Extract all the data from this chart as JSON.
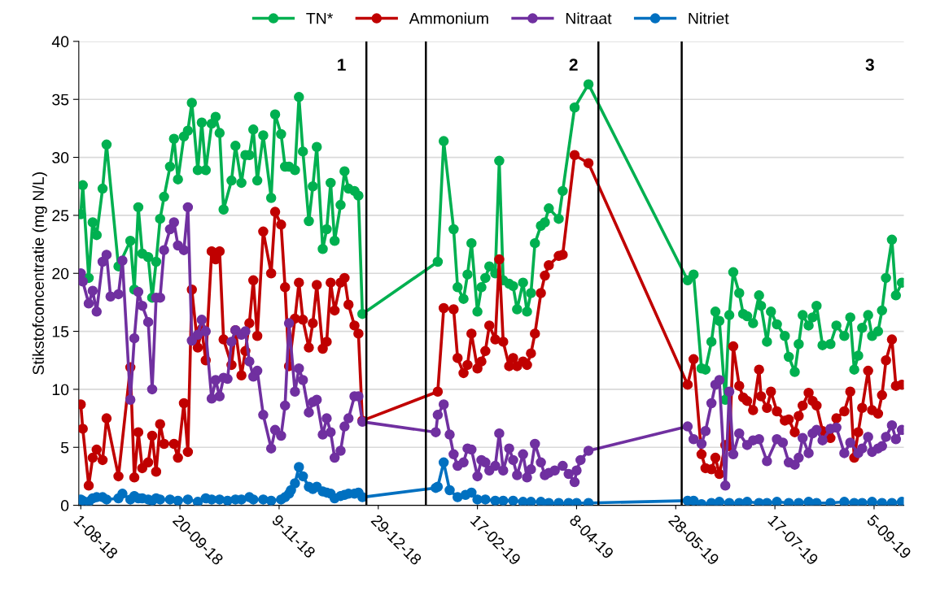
{
  "chart_data": {
    "type": "line",
    "ylabel": "Stikstofconcentratie (mg N/L)",
    "xlim": [
      "2018-07-31",
      "2019-09-20"
    ],
    "ylim": [
      0,
      40
    ],
    "yticks": [
      0,
      5,
      10,
      15,
      20,
      25,
      30,
      35,
      40
    ],
    "xticks": [
      {
        "value": "2018-08-01",
        "label": "1-08-18"
      },
      {
        "value": "2018-09-20",
        "label": "20-09-18"
      },
      {
        "value": "2018-11-09",
        "label": "9-11-18"
      },
      {
        "value": "2018-12-29",
        "label": "29-12-18"
      },
      {
        "value": "2019-02-17",
        "label": "17-02-19"
      },
      {
        "value": "2019-04-08",
        "label": "8-04-19"
      },
      {
        "value": "2019-05-28",
        "label": "28-05-19"
      },
      {
        "value": "2019-07-17",
        "label": "17-07-19"
      },
      {
        "value": "2019-09-05",
        "label": "5-09-19"
      }
    ],
    "grid": "y",
    "legend": "top",
    "marker": "circle",
    "line_style": "solid",
    "ref_lines": [
      {
        "axis": "x",
        "value": "2018-12-23",
        "color": "#000000"
      },
      {
        "axis": "x",
        "value": "2019-01-22",
        "color": "#000000"
      },
      {
        "axis": "x",
        "value": "2019-04-19",
        "color": "#000000"
      },
      {
        "axis": "x",
        "value": "2019-05-31",
        "color": "#000000"
      }
    ],
    "annotations": [
      "1",
      "2",
      "3"
    ],
    "series": [
      {
        "name": "TN*",
        "color": "#00b050",
        "x": [
          "2018-08-01",
          "2018-08-02",
          "2018-08-05",
          "2018-08-07",
          "2018-08-09",
          "2018-08-12",
          "2018-08-14",
          "2018-08-20",
          "2018-08-26",
          "2018-08-28",
          "2018-08-30",
          "2018-09-01",
          "2018-09-04",
          "2018-09-06",
          "2018-09-08",
          "2018-09-10",
          "2018-09-12",
          "2018-09-15",
          "2018-09-17",
          "2018-09-19",
          "2018-09-22",
          "2018-09-24",
          "2018-09-26",
          "2018-09-29",
          "2018-10-01",
          "2018-10-03",
          "2018-10-06",
          "2018-10-08",
          "2018-10-10",
          "2018-10-12",
          "2018-10-16",
          "2018-10-18",
          "2018-10-21",
          "2018-10-23",
          "2018-10-25",
          "2018-10-27",
          "2018-10-29",
          "2018-11-01",
          "2018-11-05",
          "2018-11-07",
          "2018-11-10",
          "2018-11-12",
          "2018-11-14",
          "2018-11-17",
          "2018-11-19",
          "2018-11-21",
          "2018-11-24",
          "2018-11-26",
          "2018-11-28",
          "2018-12-01",
          "2018-12-03",
          "2018-12-05",
          "2018-12-07",
          "2018-12-10",
          "2018-12-12",
          "2018-12-14",
          "2018-12-17",
          "2018-12-19",
          "2018-12-21",
          "2019-01-28",
          "2019-01-31",
          "2019-02-05",
          "2019-02-07",
          "2019-02-10",
          "2019-02-12",
          "2019-02-14",
          "2019-02-17",
          "2019-02-19",
          "2019-02-21",
          "2019-02-23",
          "2019-02-26",
          "2019-02-28",
          "2019-03-02",
          "2019-03-05",
          "2019-03-07",
          "2019-03-09",
          "2019-03-12",
          "2019-03-14",
          "2019-03-16",
          "2019-03-18",
          "2019-03-21",
          "2019-03-23",
          "2019-03-25",
          "2019-03-30",
          "2019-04-01",
          "2019-04-07",
          "2019-04-14",
          "2019-06-03",
          "2019-06-06",
          "2019-06-10",
          "2019-06-12",
          "2019-06-15",
          "2019-06-17",
          "2019-06-19",
          "2019-06-22",
          "2019-06-24",
          "2019-06-26",
          "2019-06-29",
          "2019-07-01",
          "2019-07-03",
          "2019-07-06",
          "2019-07-09",
          "2019-07-10",
          "2019-07-13",
          "2019-07-15",
          "2019-07-18",
          "2019-07-22",
          "2019-07-24",
          "2019-07-27",
          "2019-07-29",
          "2019-07-31",
          "2019-08-03",
          "2019-08-05",
          "2019-08-07",
          "2019-08-10",
          "2019-08-14",
          "2019-08-17",
          "2019-08-21",
          "2019-08-24",
          "2019-08-26",
          "2019-08-28",
          "2019-08-30",
          "2019-09-02",
          "2019-09-04",
          "2019-09-07",
          "2019-09-09",
          "2019-09-11",
          "2019-09-14",
          "2019-09-16",
          "2019-09-19"
        ],
        "values": [
          25.1,
          27.6,
          19.6,
          24.4,
          23.3,
          27.3,
          31.1,
          20.6,
          22.8,
          18.6,
          25.7,
          21.7,
          21.4,
          17.9,
          21.0,
          24.7,
          26.6,
          29.2,
          31.6,
          28.1,
          31.8,
          32.3,
          34.7,
          28.9,
          33.0,
          28.9,
          32.9,
          33.5,
          32.1,
          25.5,
          28.0,
          31.0,
          27.8,
          30.2,
          30.2,
          32.4,
          28.0,
          31.9,
          26.5,
          33.7,
          32.0,
          29.2,
          29.2,
          28.9,
          35.2,
          30.5,
          24.5,
          27.5,
          30.9,
          22.1,
          23.8,
          27.8,
          22.8,
          25.9,
          28.8,
          27.3,
          27.1,
          26.7,
          16.5,
          21.0,
          31.4,
          23.8,
          18.8,
          17.8,
          19.9,
          22.6,
          16.7,
          18.8,
          19.6,
          20.6,
          20.0,
          29.7,
          19.4,
          19.1,
          18.9,
          16.9,
          19.2,
          16.7,
          18.3,
          22.6,
          24.1,
          24.4,
          25.6,
          24.7,
          27.1,
          34.3,
          36.3,
          19.4,
          19.9,
          11.8,
          11.7,
          14.1,
          16.7,
          15.9,
          9.1,
          16.4,
          20.1,
          18.3,
          16.5,
          16.3,
          15.7,
          18.1,
          17.2,
          14.1,
          16.7,
          15.6,
          14.6,
          12.8,
          11.5,
          13.9,
          16.4,
          15.5,
          16.2,
          17.2,
          13.8,
          13.9,
          15.5,
          14.6,
          16.2,
          11.7,
          12.9,
          15.3,
          16.4,
          14.6,
          15.0,
          16.8,
          19.6,
          22.9,
          18.1,
          19.2
        ]
      },
      {
        "name": "Ammonium",
        "color": "#c00000",
        "x": [
          "2018-08-01",
          "2018-08-02",
          "2018-08-05",
          "2018-08-07",
          "2018-08-09",
          "2018-08-12",
          "2018-08-14",
          "2018-08-20",
          "2018-08-26",
          "2018-08-28",
          "2018-08-30",
          "2018-09-01",
          "2018-09-04",
          "2018-09-06",
          "2018-09-08",
          "2018-09-10",
          "2018-09-12",
          "2018-09-17",
          "2018-09-19",
          "2018-09-22",
          "2018-09-24",
          "2018-09-26",
          "2018-09-29",
          "2018-10-01",
          "2018-10-03",
          "2018-10-06",
          "2018-10-08",
          "2018-10-10",
          "2018-10-12",
          "2018-10-16",
          "2018-10-18",
          "2018-10-21",
          "2018-10-23",
          "2018-10-25",
          "2018-10-27",
          "2018-10-29",
          "2018-11-01",
          "2018-11-05",
          "2018-11-07",
          "2018-11-10",
          "2018-11-12",
          "2018-11-14",
          "2018-11-17",
          "2018-11-19",
          "2018-11-21",
          "2018-11-24",
          "2018-11-26",
          "2018-11-28",
          "2018-12-01",
          "2018-12-03",
          "2018-12-05",
          "2018-12-07",
          "2018-12-10",
          "2018-12-12",
          "2018-12-14",
          "2018-12-17",
          "2018-12-19",
          "2018-12-21",
          "2019-01-28",
          "2019-01-31",
          "2019-02-05",
          "2019-02-07",
          "2019-02-10",
          "2019-02-12",
          "2019-02-14",
          "2019-02-17",
          "2019-02-19",
          "2019-02-21",
          "2019-02-23",
          "2019-02-26",
          "2019-02-28",
          "2019-03-02",
          "2019-03-05",
          "2019-03-07",
          "2019-03-09",
          "2019-03-12",
          "2019-03-14",
          "2019-03-16",
          "2019-03-18",
          "2019-03-21",
          "2019-03-23",
          "2019-03-25",
          "2019-03-30",
          "2019-04-01",
          "2019-04-07",
          "2019-04-14",
          "2019-06-03",
          "2019-06-06",
          "2019-06-10",
          "2019-06-12",
          "2019-06-15",
          "2019-06-17",
          "2019-06-19",
          "2019-06-22",
          "2019-06-24",
          "2019-06-26",
          "2019-06-29",
          "2019-07-01",
          "2019-07-03",
          "2019-07-06",
          "2019-07-09",
          "2019-07-10",
          "2019-07-13",
          "2019-07-15",
          "2019-07-18",
          "2019-07-22",
          "2019-07-24",
          "2019-07-27",
          "2019-07-29",
          "2019-07-31",
          "2019-08-03",
          "2019-08-05",
          "2019-08-07",
          "2019-08-10",
          "2019-08-14",
          "2019-08-17",
          "2019-08-21",
          "2019-08-24",
          "2019-08-26",
          "2019-08-28",
          "2019-08-30",
          "2019-09-02",
          "2019-09-04",
          "2019-09-07",
          "2019-09-09",
          "2019-09-11",
          "2019-09-14",
          "2019-09-16",
          "2019-09-19"
        ],
        "values": [
          8.7,
          6.6,
          1.7,
          4.1,
          4.8,
          3.9,
          7.5,
          2.5,
          11.9,
          2.4,
          6.3,
          3.2,
          3.7,
          6.0,
          2.9,
          7.0,
          5.3,
          5.3,
          4.1,
          8.8,
          4.6,
          18.6,
          13.6,
          15.2,
          12.5,
          21.9,
          21.2,
          21.9,
          14.3,
          12.1,
          15.1,
          11.2,
          13.3,
          15.7,
          19.4,
          14.6,
          23.6,
          20.0,
          25.3,
          24.2,
          18.8,
          12.0,
          16.1,
          19.2,
          16.0,
          13.6,
          15.7,
          19.0,
          13.5,
          14.1,
          19.2,
          16.8,
          19.2,
          19.6,
          17.3,
          15.5,
          14.8,
          7.3,
          9.8,
          17.0,
          16.9,
          12.7,
          11.4,
          12.1,
          14.8,
          11.8,
          12.4,
          13.3,
          15.5,
          14.3,
          21.2,
          14.1,
          12.0,
          12.7,
          12.0,
          12.4,
          12.1,
          13.1,
          14.8,
          18.3,
          19.8,
          20.7,
          21.5,
          21.6,
          30.2,
          29.5,
          10.4,
          12.6,
          4.4,
          3.2,
          3.1,
          4.1,
          2.7,
          5.2,
          5.1,
          13.7,
          10.3,
          9.3,
          9.0,
          8.2,
          11.7,
          9.4,
          8.4,
          9.8,
          8.1,
          7.3,
          7.4,
          6.3,
          7.7,
          8.6,
          9.7,
          9.0,
          8.6,
          6.4,
          5.8,
          7.5,
          8.1,
          9.8,
          4.1,
          6.3,
          8.4,
          11.6,
          8.2,
          7.9,
          9.5,
          12.5,
          14.3,
          10.3,
          10.4
        ]
      },
      {
        "name": "Nitraat",
        "color": "#7030a0",
        "x": [
          "2018-08-01",
          "2018-08-02",
          "2018-08-05",
          "2018-08-07",
          "2018-08-09",
          "2018-08-12",
          "2018-08-14",
          "2018-08-16",
          "2018-08-20",
          "2018-08-22",
          "2018-08-26",
          "2018-08-28",
          "2018-08-30",
          "2018-09-01",
          "2018-09-04",
          "2018-09-06",
          "2018-09-08",
          "2018-09-10",
          "2018-09-12",
          "2018-09-15",
          "2018-09-17",
          "2018-09-19",
          "2018-09-22",
          "2018-09-24",
          "2018-09-26",
          "2018-09-29",
          "2018-10-01",
          "2018-10-03",
          "2018-10-06",
          "2018-10-08",
          "2018-10-10",
          "2018-10-12",
          "2018-10-14",
          "2018-10-16",
          "2018-10-18",
          "2018-10-21",
          "2018-10-23",
          "2018-10-25",
          "2018-10-27",
          "2018-10-29",
          "2018-11-01",
          "2018-11-05",
          "2018-11-07",
          "2018-11-10",
          "2018-11-12",
          "2018-11-14",
          "2018-11-17",
          "2018-11-19",
          "2018-11-21",
          "2018-11-24",
          "2018-11-26",
          "2018-11-28",
          "2018-12-01",
          "2018-12-03",
          "2018-12-05",
          "2018-12-07",
          "2018-12-10",
          "2018-12-12",
          "2018-12-14",
          "2018-12-17",
          "2018-12-19",
          "2018-12-21",
          "2019-01-27",
          "2019-01-28",
          "2019-01-31",
          "2019-02-03",
          "2019-02-05",
          "2019-02-07",
          "2019-02-10",
          "2019-02-12",
          "2019-02-14",
          "2019-02-17",
          "2019-02-19",
          "2019-02-21",
          "2019-02-23",
          "2019-02-26",
          "2019-02-28",
          "2019-03-02",
          "2019-03-05",
          "2019-03-07",
          "2019-03-09",
          "2019-03-12",
          "2019-03-14",
          "2019-03-16",
          "2019-03-18",
          "2019-03-21",
          "2019-03-23",
          "2019-03-25",
          "2019-03-28",
          "2019-04-01",
          "2019-04-04",
          "2019-04-07",
          "2019-04-08",
          "2019-04-10",
          "2019-04-14",
          "2019-06-03",
          "2019-06-06",
          "2019-06-10",
          "2019-06-12",
          "2019-06-15",
          "2019-06-17",
          "2019-06-19",
          "2019-06-22",
          "2019-06-24",
          "2019-06-26",
          "2019-06-29",
          "2019-07-03",
          "2019-07-06",
          "2019-07-09",
          "2019-07-13",
          "2019-07-18",
          "2019-07-21",
          "2019-07-24",
          "2019-07-27",
          "2019-07-29",
          "2019-07-31",
          "2019-08-03",
          "2019-08-05",
          "2019-08-07",
          "2019-08-10",
          "2019-08-14",
          "2019-08-17",
          "2019-08-21",
          "2019-08-24",
          "2019-08-28",
          "2019-08-30",
          "2019-09-02",
          "2019-09-04",
          "2019-09-07",
          "2019-09-09",
          "2019-09-11",
          "2019-09-14",
          "2019-09-16",
          "2019-09-19"
        ],
        "values": [
          20.0,
          19.3,
          17.4,
          18.5,
          16.7,
          21.0,
          21.6,
          18.0,
          18.2,
          21.1,
          9.1,
          14.4,
          18.4,
          17.2,
          15.8,
          10.0,
          17.9,
          17.9,
          22.0,
          23.8,
          24.4,
          22.4,
          22.0,
          25.7,
          14.2,
          14.7,
          16.0,
          15.0,
          9.2,
          10.8,
          9.4,
          11.0,
          10.9,
          14.1,
          15.1,
          14.7,
          15.0,
          12.4,
          11.1,
          11.6,
          7.8,
          4.9,
          6.5,
          6.0,
          8.6,
          15.7,
          9.8,
          11.8,
          10.8,
          8.0,
          8.9,
          9.1,
          6.1,
          7.5,
          6.3,
          4.1,
          4.7,
          6.8,
          7.5,
          9.4,
          9.4,
          7.2,
          6.3,
          7.8,
          8.7,
          6.1,
          4.4,
          3.4,
          3.7,
          4.9,
          4.8,
          2.5,
          3.9,
          3.7,
          3.0,
          3.4,
          6.2,
          3.0,
          4.9,
          3.9,
          2.6,
          4.4,
          2.4,
          3.1,
          5.3,
          3.7,
          2.6,
          2.8,
          3.0,
          3.4,
          2.7,
          2.0,
          3.0,
          3.9,
          4.7,
          6.8,
          5.7,
          5.3,
          6.4,
          8.8,
          10.4,
          10.8,
          1.7,
          9.8,
          4.4,
          6.2,
          5.2,
          5.6,
          5.7,
          3.8,
          5.7,
          5.4,
          3.7,
          3.5,
          4.1,
          5.8,
          4.5,
          6.2,
          6.5,
          5.6,
          6.6,
          6.7,
          4.5,
          5.4,
          4.5,
          4.9,
          5.9,
          4.6,
          4.9,
          5.1,
          5.9,
          6.9,
          5.7,
          6.5
        ]
      },
      {
        "name": "Nitriet",
        "color": "#0070c0",
        "x": [
          "2018-08-01",
          "2018-08-02",
          "2018-08-05",
          "2018-08-07",
          "2018-08-09",
          "2018-08-12",
          "2018-08-14",
          "2018-08-20",
          "2018-08-22",
          "2018-08-26",
          "2018-08-28",
          "2018-08-30",
          "2018-09-01",
          "2018-09-04",
          "2018-09-06",
          "2018-09-08",
          "2018-09-10",
          "2018-09-15",
          "2018-09-19",
          "2018-09-24",
          "2018-09-29",
          "2018-10-03",
          "2018-10-06",
          "2018-10-10",
          "2018-10-14",
          "2018-10-18",
          "2018-10-21",
          "2018-10-25",
          "2018-10-27",
          "2018-11-01",
          "2018-11-05",
          "2018-11-10",
          "2018-11-12",
          "2018-11-14",
          "2018-11-15",
          "2018-11-17",
          "2018-11-19",
          "2018-11-21",
          "2018-11-24",
          "2018-11-26",
          "2018-11-28",
          "2018-12-01",
          "2018-12-03",
          "2018-12-05",
          "2018-12-07",
          "2018-12-10",
          "2018-12-12",
          "2018-12-14",
          "2018-12-17",
          "2018-12-19",
          "2018-12-21",
          "2019-01-27",
          "2019-01-28",
          "2019-01-31",
          "2019-02-03",
          "2019-02-07",
          "2019-02-11",
          "2019-02-14",
          "2019-02-17",
          "2019-02-21",
          "2019-02-26",
          "2019-03-02",
          "2019-03-07",
          "2019-03-12",
          "2019-03-16",
          "2019-03-21",
          "2019-03-25",
          "2019-03-30",
          "2019-04-04",
          "2019-04-08",
          "2019-04-14",
          "2019-06-03",
          "2019-06-06",
          "2019-06-10",
          "2019-06-15",
          "2019-06-19",
          "2019-06-24",
          "2019-06-29",
          "2019-07-03",
          "2019-07-09",
          "2019-07-13",
          "2019-07-18",
          "2019-07-24",
          "2019-07-29",
          "2019-08-03",
          "2019-08-07",
          "2019-08-14",
          "2019-08-21",
          "2019-08-26",
          "2019-08-30",
          "2019-09-04",
          "2019-09-09",
          "2019-09-14",
          "2019-09-19"
        ],
        "values": [
          0.5,
          0.4,
          0.3,
          0.6,
          0.7,
          0.7,
          0.5,
          0.6,
          1.0,
          0.5,
          0.8,
          0.6,
          0.6,
          0.5,
          0.4,
          0.6,
          0.5,
          0.5,
          0.4,
          0.5,
          0.3,
          0.6,
          0.5,
          0.5,
          0.4,
          0.5,
          0.5,
          0.7,
          0.5,
          0.5,
          0.4,
          0.5,
          0.7,
          1.0,
          1.3,
          1.9,
          3.3,
          2.5,
          1.6,
          1.4,
          1.6,
          1.2,
          1.1,
          1.0,
          0.6,
          0.8,
          0.9,
          1.0,
          1.0,
          1.1,
          0.7,
          1.5,
          1.6,
          3.7,
          1.3,
          0.7,
          0.9,
          1.1,
          0.5,
          0.5,
          0.4,
          0.4,
          0.4,
          0.3,
          0.3,
          0.3,
          0.2,
          0.2,
          0.2,
          0.2,
          0.2,
          0.4,
          0.4,
          0.1,
          0.2,
          0.3,
          0.2,
          0.2,
          0.3,
          0.2,
          0.2,
          0.3,
          0.2,
          0.2,
          0.3,
          0.2,
          0.2,
          0.3,
          0.2,
          0.2,
          0.3,
          0.2,
          0.2,
          0.3
        ]
      }
    ]
  }
}
